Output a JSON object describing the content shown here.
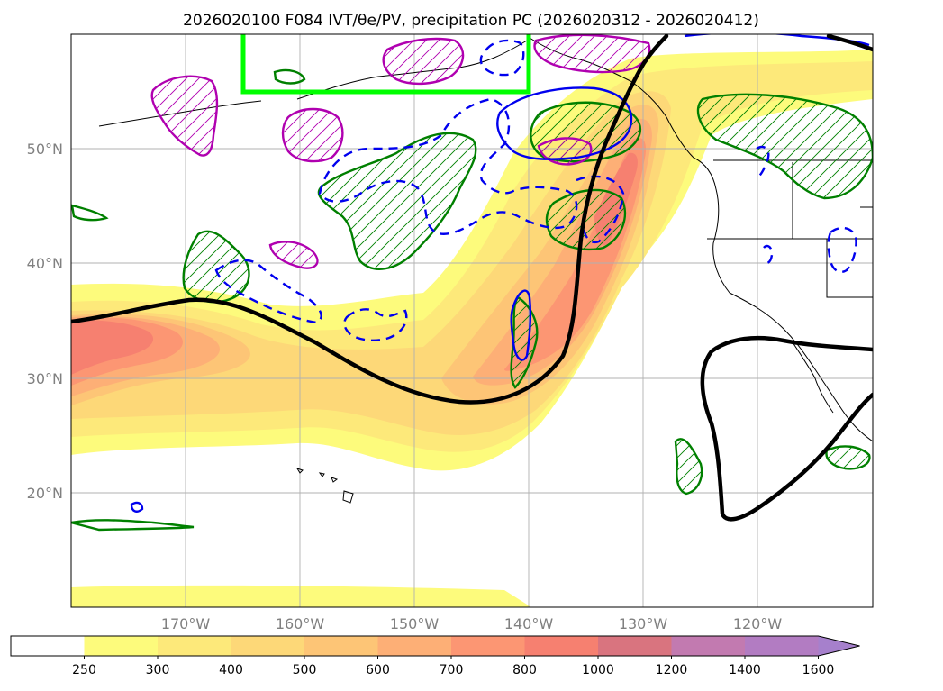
{
  "chart_data": {
    "type": "contour-map",
    "title": "2026020100 F084 IVT/θe/PV, precipitation PC (2026020312 - 2026020412)",
    "region": "North Pacific and western North America",
    "lon_range": [
      -180,
      -110
    ],
    "lat_range": [
      10,
      60
    ],
    "x_ticks": [
      {
        "value": -170,
        "label": "170°W"
      },
      {
        "value": -160,
        "label": "160°W"
      },
      {
        "value": -150,
        "label": "150°W"
      },
      {
        "value": -140,
        "label": "140°W"
      },
      {
        "value": -130,
        "label": "130°W"
      },
      {
        "value": -120,
        "label": "120°W"
      }
    ],
    "y_ticks": [
      {
        "value": 20,
        "label": "20°N"
      },
      {
        "value": 30,
        "label": "30°N"
      },
      {
        "value": 40,
        "label": "40°N"
      },
      {
        "value": 50,
        "label": "50°N"
      }
    ],
    "grid": true,
    "colorbar": {
      "variable": "IVT",
      "levels": [
        250,
        300,
        400,
        500,
        600,
        700,
        800,
        1000,
        1200,
        1400,
        1600
      ],
      "level_labels": [
        "250",
        "300",
        "400",
        "500",
        "600",
        "700",
        "800",
        "1000",
        "1200",
        "1400",
        "1600"
      ],
      "colors": [
        "#ffffff",
        "#fdfb7c",
        "#fde97a",
        "#fdd878",
        "#fdc576",
        "#fdaf76",
        "#fc9673",
        "#f68070",
        "#d9747f",
        "#c27ab0",
        "#b27cc2",
        "#a680cc"
      ],
      "extend": "max",
      "placement": "bottom"
    },
    "ivt_bands": [
      {
        "name": "subtropical-jet-band",
        "description": "Broad IVT band from 180°W 33°N eastward near 30°N to the Pacific Northwest",
        "peak_value": 1000
      },
      {
        "name": "atmospheric-river-core",
        "description": "Northeastward river from 145°W 30°N to Pacific NW coast 50–55°N",
        "peak_value": 800
      },
      {
        "name": "southern-band",
        "description": "Weak band near 11°N across 180°W–140°W",
        "peak_value": 300
      }
    ],
    "theta_e_contour": {
      "color": "#000000",
      "description": "Thick black equivalent potential temperature contour"
    },
    "pv_contours": {
      "positive_color": "#0000ff",
      "negative_style": "dashed blue"
    },
    "precipitation_pc": {
      "positive_color": "#008000",
      "positive_hatch": true,
      "negative_color": "#b000b0",
      "negative_hatch": true
    },
    "highlight_box": {
      "color": "#00ff00",
      "lon_range": [
        -165,
        -140
      ],
      "lat_range": [
        55,
        60
      ]
    }
  }
}
